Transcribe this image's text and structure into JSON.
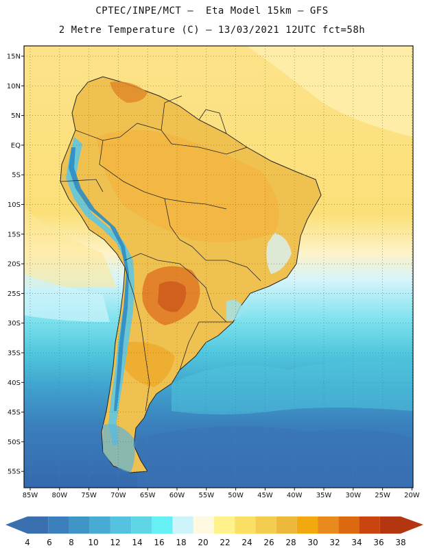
{
  "header": {
    "line1": "CPTEC/INPE/MCT –  Eta Model 15km – GFS",
    "line2": "2 Metre Temperature (C) – 13/03/2021 12UTC fct=58h"
  },
  "axes": {
    "lat_labels": [
      "15N",
      "10N",
      "5N",
      "EQ",
      "5S",
      "10S",
      "15S",
      "20S",
      "25S",
      "30S",
      "35S",
      "40S",
      "45S",
      "50S",
      "55S"
    ],
    "lon_labels": [
      "85W",
      "80W",
      "75W",
      "70W",
      "65W",
      "60W",
      "55W",
      "50W",
      "45W",
      "40W",
      "35W",
      "30W",
      "25W",
      "20W"
    ]
  },
  "colorbar": {
    "ticks": [
      "4",
      "6",
      "8",
      "10",
      "12",
      "14",
      "16",
      "18",
      "20",
      "22",
      "24",
      "26",
      "28",
      "30",
      "32",
      "34",
      "36",
      "38"
    ],
    "colors": [
      "#3a6fb0",
      "#3b80bd",
      "#3f95c6",
      "#47abd3",
      "#55c3df",
      "#5fd6e6",
      "#66f0f3",
      "#cdf3fb",
      "#fff9e2",
      "#fff28a",
      "#fbe066",
      "#f3cc50",
      "#ecb93a",
      "#f1a90f",
      "#e88a1d",
      "#dd6a10",
      "#c9440e",
      "#b33610"
    ]
  }
}
